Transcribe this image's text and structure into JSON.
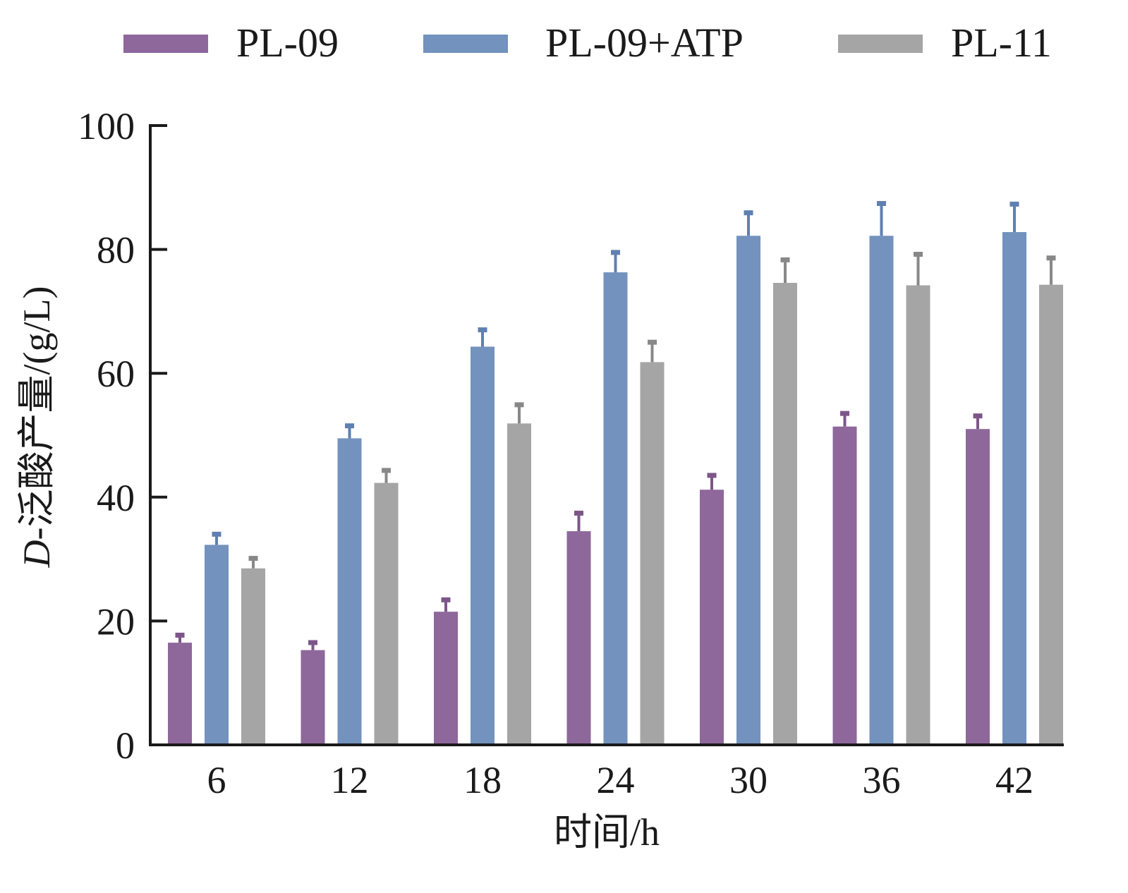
{
  "chart_data": {
    "type": "bar",
    "title": "",
    "xlabel": "时间/h",
    "ylabel_prefix": "D",
    "ylabel_rest": "-泛酸产量/(g/L)",
    "categories": [
      "6",
      "12",
      "18",
      "24",
      "30",
      "36",
      "42"
    ],
    "ylim": [
      0,
      100
    ],
    "yticks": [
      0,
      20,
      40,
      60,
      80,
      100
    ],
    "grid": false,
    "legend_position": "top",
    "series": [
      {
        "name": "PL-09",
        "color": "#8e679b",
        "error_color": "#7d5689",
        "values": [
          16.5,
          15.3,
          21.5,
          34.5,
          41.2,
          51.4,
          51.0
        ],
        "errors": [
          1.5,
          1.5,
          2.2,
          3.2,
          2.6,
          2.4,
          2.4
        ]
      },
      {
        "name": "PL-09+ATP",
        "color": "#7392be",
        "error_color": "#5f80b0",
        "values": [
          32.3,
          49.5,
          64.3,
          76.3,
          82.2,
          82.2,
          82.8
        ],
        "errors": [
          2.0,
          2.3,
          3.0,
          3.5,
          4.0,
          5.5,
          4.8
        ]
      },
      {
        "name": "PL-11",
        "color": "#a5a5a5",
        "error_color": "#888888",
        "values": [
          28.5,
          42.3,
          51.9,
          61.8,
          74.6,
          74.2,
          74.3
        ],
        "errors": [
          1.9,
          2.3,
          3.3,
          3.5,
          4.0,
          5.3,
          4.6
        ]
      }
    ]
  }
}
